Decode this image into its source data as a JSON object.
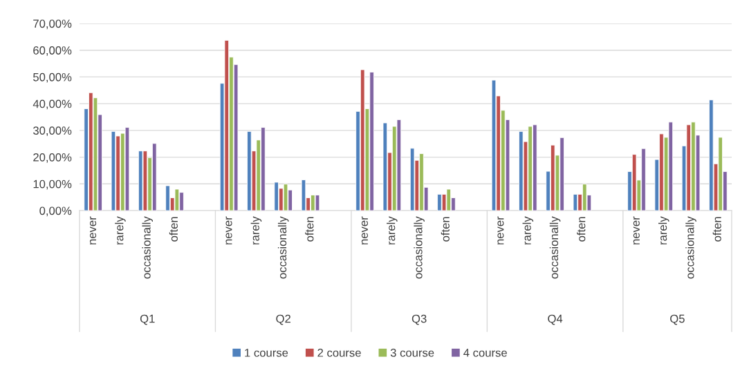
{
  "chart_data": {
    "type": "bar",
    "categories": [
      "never",
      "rarely",
      "occasionally",
      "often",
      null,
      "never",
      "rarely",
      "occasionally",
      "often",
      null,
      "never",
      "rarely",
      "occasionally",
      "often",
      null,
      "never",
      "rarely",
      "occasionally",
      "often",
      null,
      "never",
      "rarely",
      "occasionally",
      "often"
    ],
    "series": [
      {
        "name": "1 course",
        "color": "#4f81bd",
        "values": [
          38.1,
          29.6,
          22.3,
          9.3,
          null,
          47.6,
          29.6,
          10.6,
          11.5,
          null,
          37.1,
          32.8,
          23.3,
          6.1,
          null,
          48.8,
          29.6,
          14.7,
          6.1,
          null,
          14.6,
          19.1,
          24.2,
          41.4
        ]
      },
      {
        "name": "2 course",
        "color": "#c0504d",
        "values": [
          44.1,
          27.9,
          22.3,
          4.8,
          null,
          63.7,
          22.3,
          8.3,
          4.8,
          null,
          52.7,
          21.7,
          18.8,
          6.1,
          null,
          42.9,
          25.8,
          24.5,
          6.1,
          null,
          21.0,
          28.7,
          32.1,
          17.5
        ]
      },
      {
        "name": "3 course",
        "color": "#9bbb59",
        "values": [
          42.2,
          28.9,
          19.8,
          8.0,
          null,
          57.4,
          26.4,
          9.9,
          5.8,
          null,
          38.1,
          31.5,
          21.3,
          8.0,
          null,
          37.5,
          31.5,
          20.7,
          9.9,
          null,
          11.4,
          27.4,
          33.1,
          27.4
        ]
      },
      {
        "name": "4 course",
        "color": "#8064a2",
        "values": [
          35.9,
          31.1,
          25.1,
          6.8,
          null,
          54.6,
          31.1,
          7.7,
          5.8,
          null,
          51.8,
          34.0,
          8.7,
          4.8,
          null,
          34.0,
          32.1,
          27.3,
          5.8,
          null,
          23.2,
          33.1,
          28.2,
          14.6
        ]
      }
    ],
    "annotations": [
      "Q1",
      "Q2",
      "Q3",
      "Q4",
      "Q5"
    ],
    "ylim": [
      0,
      70
    ],
    "yticks": [
      {
        "value": 0,
        "label": "0,00%"
      },
      {
        "value": 10,
        "label": "10,00%"
      },
      {
        "value": 20,
        "label": "20,00%"
      },
      {
        "value": 30,
        "label": "30,00%"
      },
      {
        "value": 40,
        "label": "40,00%"
      },
      {
        "value": 50,
        "label": "50,00%"
      },
      {
        "value": 60,
        "label": "60,00%"
      },
      {
        "value": 70,
        "label": "70,00%"
      }
    ],
    "grid": "y",
    "legend": "bottom"
  }
}
